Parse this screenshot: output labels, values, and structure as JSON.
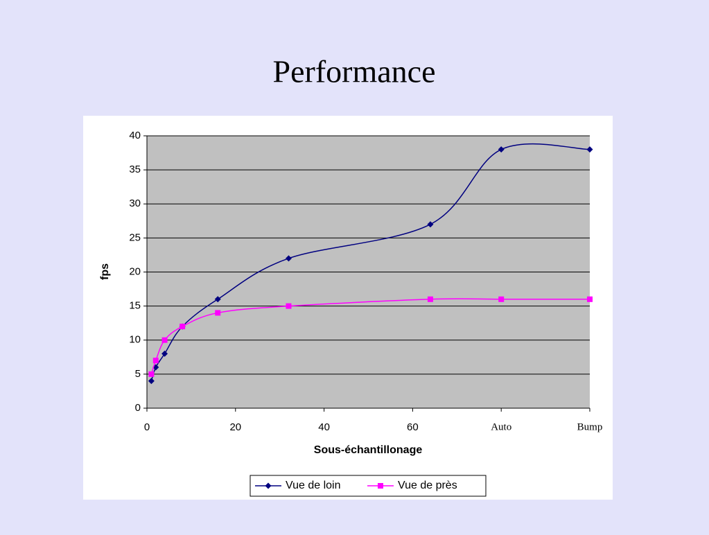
{
  "chart_data": {
    "type": "line",
    "title": "Performance",
    "x_label": "Sous-échantillonage",
    "y_label": "fps",
    "x": [
      1,
      2,
      4,
      8,
      16,
      32,
      64,
      80,
      100
    ],
    "series": [
      {
        "name": "Vue de loin",
        "color": "#000080",
        "marker": "diamond",
        "values": [
          4,
          6,
          8,
          12,
          16,
          22,
          27,
          38,
          38
        ]
      },
      {
        "name": "Vue de près",
        "color": "#ff00ff",
        "marker": "square",
        "values": [
          5,
          7,
          10,
          12,
          14,
          15,
          16,
          16,
          16
        ]
      }
    ],
    "xlim": [
      0,
      100
    ],
    "xticks": [
      0,
      20,
      40,
      60,
      {
        "value": 80,
        "label": "Auto"
      },
      {
        "value": 100,
        "label": "Bump"
      }
    ],
    "ylim": [
      0,
      40
    ],
    "yticks": [
      0,
      5,
      10,
      15,
      20,
      25,
      30,
      35,
      40
    ],
    "grid": true,
    "legend": "bottom"
  }
}
